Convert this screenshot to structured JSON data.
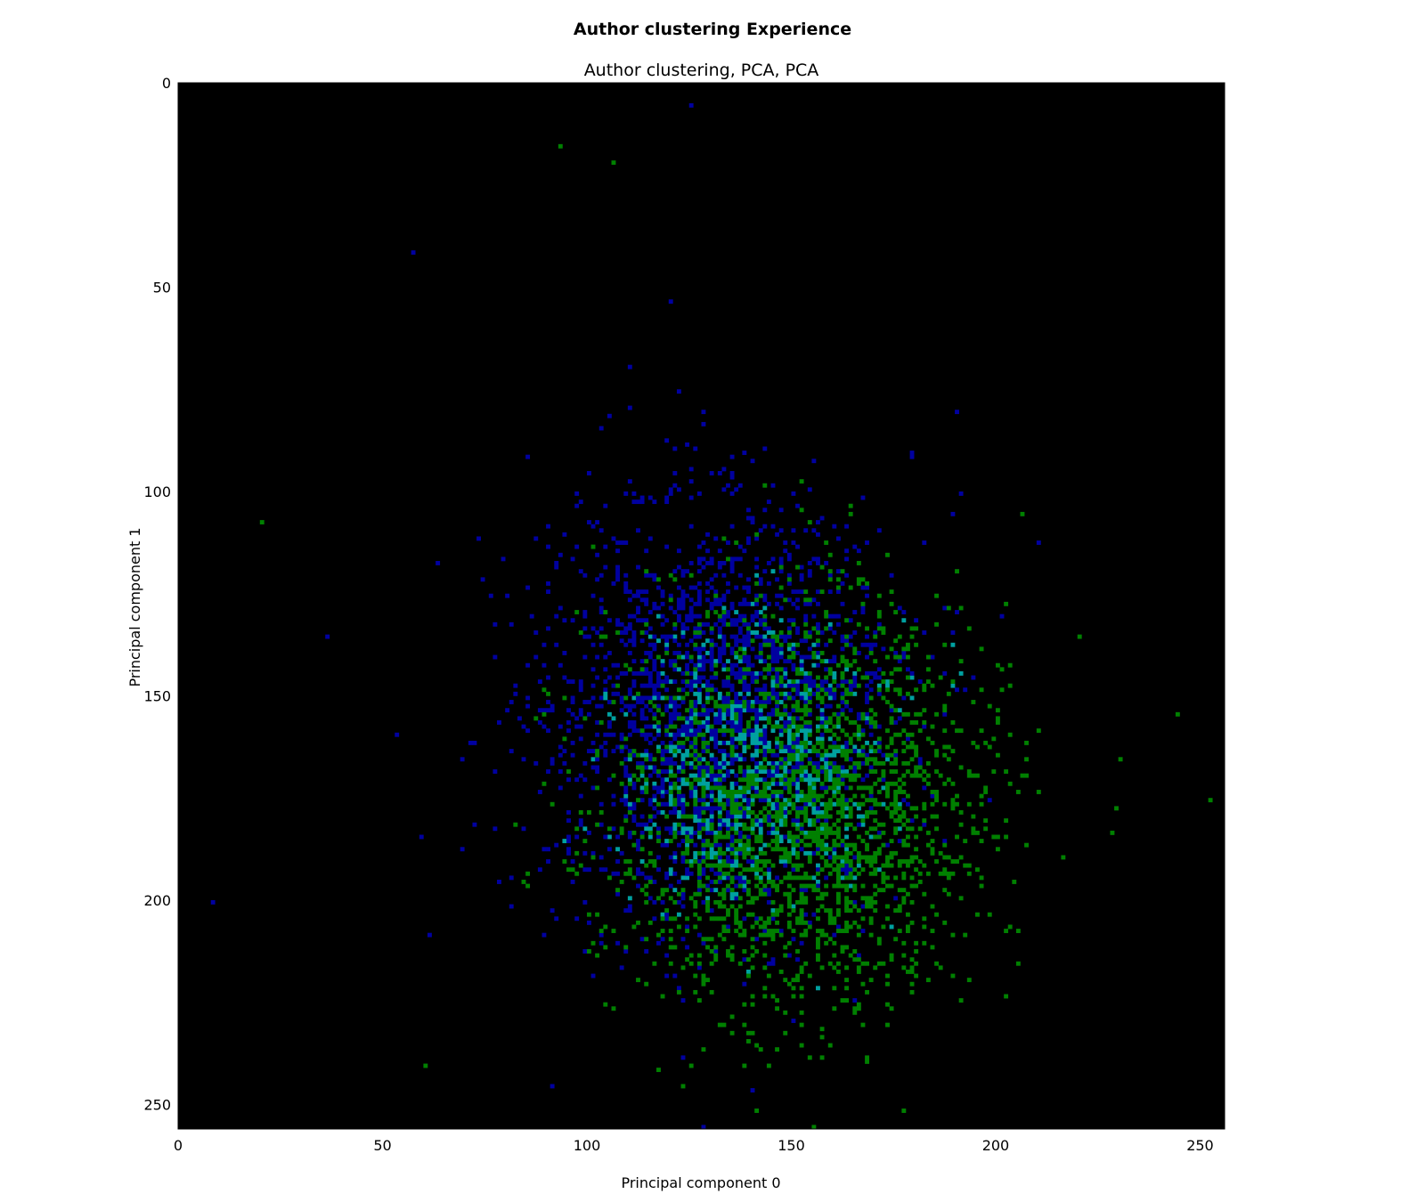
{
  "figure": {
    "suptitle": "Author clustering Experience",
    "title": "Author clustering, PCA, PCA"
  },
  "chart_data": {
    "type": "heatmap",
    "title": "Author clustering, PCA, PCA",
    "xlabel": "Principal component 0",
    "ylabel": "Principal component 1",
    "xlim": [
      0,
      256
    ],
    "ylim": [
      256,
      0
    ],
    "xticks": [
      0,
      50,
      100,
      150,
      200,
      250
    ],
    "yticks": [
      0,
      50,
      100,
      150,
      200,
      250
    ],
    "grid": false,
    "background": "#000000",
    "series": [
      {
        "color": "#0000a0",
        "center": [
          132,
          155
        ],
        "spread": [
          38,
          46
        ],
        "points": 2400,
        "sample": [
          [
            125,
            5
          ],
          [
            57,
            41
          ],
          [
            36,
            135
          ],
          [
            8,
            200
          ],
          [
            190,
            80
          ],
          [
            210,
            112
          ],
          [
            128,
            255
          ],
          [
            150,
            100
          ]
        ]
      },
      {
        "color": "#008000",
        "center": [
          150,
          175
        ],
        "spread": [
          40,
          42
        ],
        "points": 2700,
        "sample": [
          [
            93,
            15
          ],
          [
            106,
            19
          ],
          [
            20,
            107
          ],
          [
            252,
            175
          ],
          [
            230,
            165
          ],
          [
            60,
            240
          ],
          [
            173,
            225
          ],
          [
            155,
            255
          ]
        ]
      }
    ],
    "overlap_color": "#00a0a0"
  }
}
